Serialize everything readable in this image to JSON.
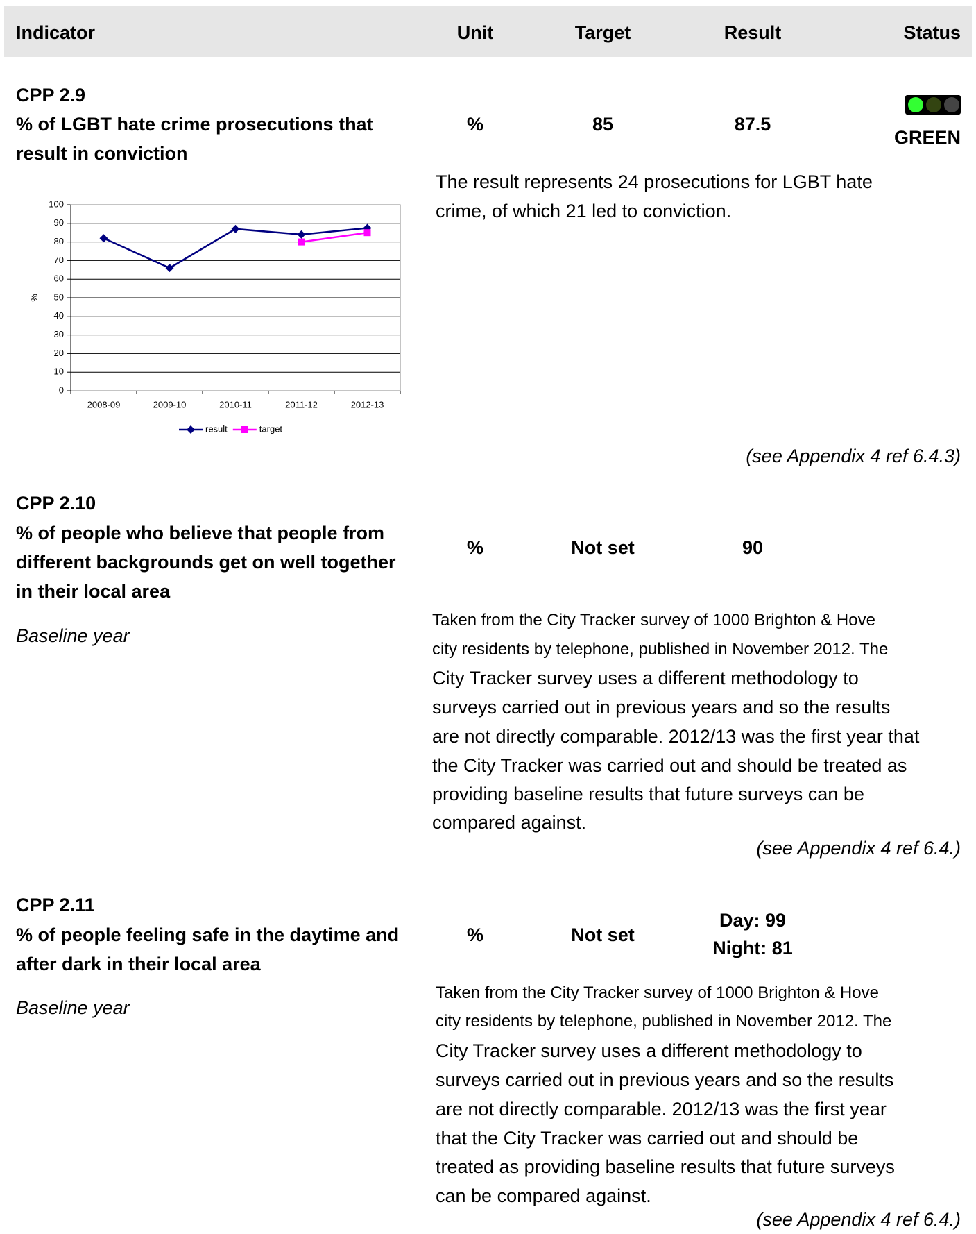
{
  "header": [
    "Indicator",
    "Unit",
    "Target",
    "Result",
    "Status"
  ],
  "indicators": [
    {
      "code": "CPP 2.9",
      "title": "% of LGBT hate crime prosecutions that result in conviction",
      "unit": "%",
      "target": "85",
      "result": [
        "87.5"
      ],
      "status": "GREEN",
      "note": [
        "The result represents 24 prosecutions for LGBT hate",
        "crime, of which 21 led to conviction."
      ],
      "appendix": "(see Appendix 4 ref 6.4.3)"
    },
    {
      "code": "CPP 2.10",
      "title": "% of people who believe that people from different backgrounds get on well together in their local area",
      "unit": "%",
      "target": "Not set",
      "result": [
        "90"
      ],
      "baseline": "Baseline year",
      "note": [
        "Taken from the City Tracker survey of 1000 Brighton & Hove",
        "city residents by telephone, published in November 2012. The",
        "City Tracker survey uses a different methodology to",
        "surveys carried out in previous years and so the results",
        "are not directly comparable. 2012/13 was the first year that",
        "the City Tracker was carried out and should be treated as",
        "providing baseline results that future surveys can be",
        "compared against."
      ],
      "appendix": "(see Appendix 4 ref 6.4.)"
    },
    {
      "code": "CPP 2.11",
      "title": "% of people feeling safe in the daytime and after dark in their local area",
      "unit": "%",
      "target": "Not set",
      "result": [
        "Day: 99",
        "Night: 81"
      ],
      "baseline": "Baseline year",
      "note": [
        "Taken from the City Tracker survey of 1000 Brighton & Hove",
        "city residents by telephone, published in November 2012. The",
        "City Tracker survey uses a different methodology to",
        "surveys carried out in previous years and so the results",
        "are not directly comparable. 2012/13 was the first year",
        "that the City Tracker was carried out and should be",
        "treated as providing baseline results that future surveys",
        "can be compared against."
      ],
      "appendix": "(see Appendix 4 ref 6.4.)"
    }
  ],
  "chart_data": {
    "type": "line",
    "ylabel": "%",
    "categories": [
      "2008-09",
      "2009-10",
      "2010-11",
      "2011-12",
      "2012-13"
    ],
    "series": [
      {
        "name": "result",
        "color": "#000080",
        "marker": "diamond",
        "values": [
          82,
          66,
          87,
          84,
          87.5
        ]
      },
      {
        "name": "target",
        "color": "#ff00ff",
        "marker": "square",
        "values": [
          null,
          null,
          null,
          80,
          85
        ]
      }
    ],
    "ylim": [
      0,
      100
    ],
    "yticks": [
      0,
      10,
      20,
      30,
      40,
      50,
      60,
      70,
      80,
      90,
      100
    ],
    "grid": true
  }
}
